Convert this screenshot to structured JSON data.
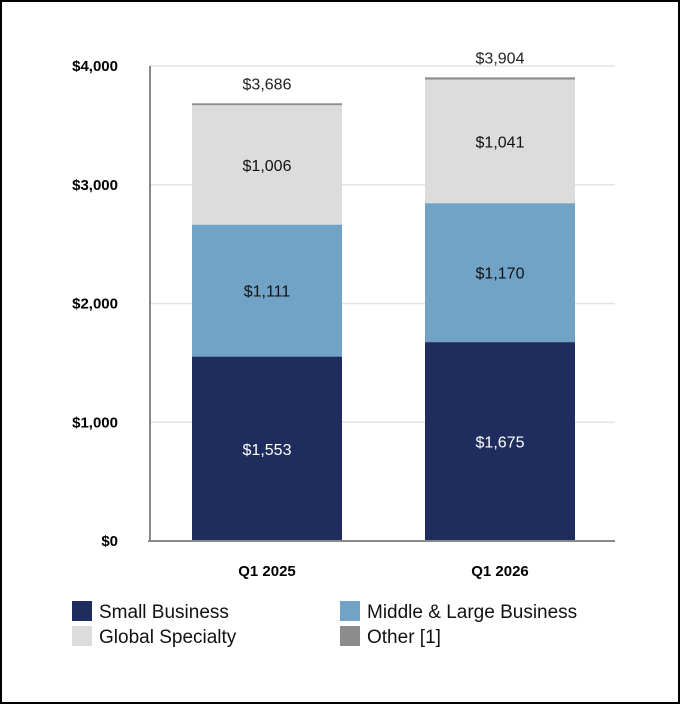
{
  "chart_data": {
    "type": "bar",
    "stacked": true,
    "categories": [
      "Q1 2025",
      "Q1 2026"
    ],
    "series": [
      {
        "name": "Small Business",
        "values": [
          1553,
          1675
        ],
        "color": "#1f2d5e",
        "label_color": "#ffffff"
      },
      {
        "name": "Middle & Large Business",
        "values": [
          1111,
          1170
        ],
        "color": "#70a3c6",
        "label_color": "#111111"
      },
      {
        "name": "Global Specialty",
        "values": [
          1006,
          1041
        ],
        "color": "#dcdcdc",
        "label_color": "#111111"
      },
      {
        "name": "Other [1]",
        "values": [
          16,
          18
        ],
        "color": "#8c8c8c",
        "label_color": "#111111"
      }
    ],
    "value_labels": [
      [
        "$1,553",
        "$1,675"
      ],
      [
        "$1,111",
        "$1,170"
      ],
      [
        "$1,006",
        "$1,041"
      ],
      [
        "",
        ""
      ]
    ],
    "totals": [
      "$3,686",
      "$3,904"
    ],
    "y_ticks": [
      {
        "value": 0,
        "label": "$0"
      },
      {
        "value": 1000,
        "label": "$1,000"
      },
      {
        "value": 2000,
        "label": "$2,000"
      },
      {
        "value": 3000,
        "label": "$3,000"
      },
      {
        "value": 4000,
        "label": "$4,000"
      }
    ],
    "ylim": [
      0,
      4000
    ],
    "grid": true,
    "legend_position": "bottom",
    "title": "",
    "xlabel": "",
    "ylabel": ""
  }
}
